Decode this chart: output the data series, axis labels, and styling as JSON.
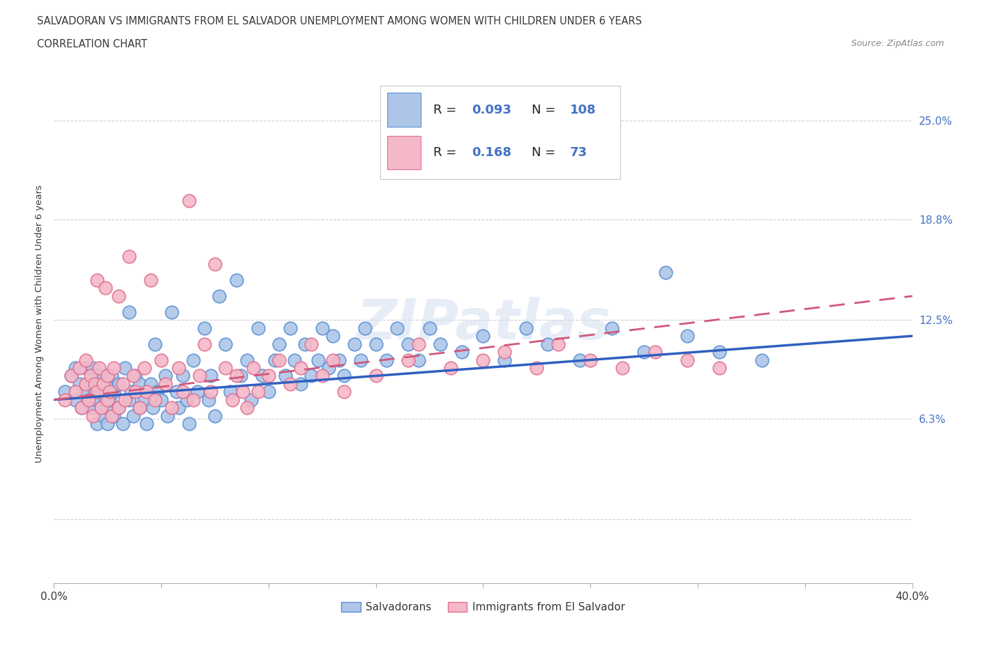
{
  "title_line1": "SALVADORAN VS IMMIGRANTS FROM EL SALVADOR UNEMPLOYMENT AMONG WOMEN WITH CHILDREN UNDER 6 YEARS",
  "title_line2": "CORRELATION CHART",
  "source_text": "Source: ZipAtlas.com",
  "ylabel": "Unemployment Among Women with Children Under 6 years",
  "xmin": 0.0,
  "xmax": 0.4,
  "ymin": -0.04,
  "ymax": 0.285,
  "ytick_vals": [
    0.0,
    0.063,
    0.125,
    0.188,
    0.25
  ],
  "ytick_labels": [
    "",
    "6.3%",
    "12.5%",
    "18.8%",
    "25.0%"
  ],
  "xtick_vals": [
    0.0,
    0.05,
    0.1,
    0.15,
    0.2,
    0.25,
    0.3,
    0.35,
    0.4
  ],
  "blue_color": "#adc6e8",
  "blue_edge_color": "#5b8fd4",
  "pink_color": "#f5b8c8",
  "pink_edge_color": "#e07090",
  "blue_line_color": "#3060c0",
  "pink_line_color": "#d05878",
  "label1": "Salvadorans",
  "label2": "Immigrants from El Salvador",
  "blue_R": "0.093",
  "blue_N": "108",
  "pink_R": "0.168",
  "pink_N": "73",
  "blue_trend": [
    0.075,
    0.115
  ],
  "pink_trend": [
    0.075,
    0.14
  ],
  "watermark": "ZIPatlas",
  "blue_x": [
    0.005,
    0.008,
    0.01,
    0.01,
    0.012,
    0.013,
    0.015,
    0.015,
    0.016,
    0.017,
    0.018,
    0.018,
    0.019,
    0.02,
    0.02,
    0.02,
    0.021,
    0.022,
    0.022,
    0.023,
    0.023,
    0.024,
    0.024,
    0.025,
    0.025,
    0.025,
    0.026,
    0.027,
    0.028,
    0.028,
    0.03,
    0.03,
    0.032,
    0.033,
    0.035,
    0.035,
    0.036,
    0.037,
    0.038,
    0.04,
    0.04,
    0.042,
    0.043,
    0.045,
    0.046,
    0.047,
    0.048,
    0.05,
    0.052,
    0.053,
    0.055,
    0.057,
    0.058,
    0.06,
    0.062,
    0.063,
    0.065,
    0.067,
    0.07,
    0.072,
    0.073,
    0.075,
    0.077,
    0.08,
    0.082,
    0.085,
    0.087,
    0.09,
    0.092,
    0.095,
    0.097,
    0.1,
    0.103,
    0.105,
    0.108,
    0.11,
    0.112,
    0.115,
    0.117,
    0.12,
    0.123,
    0.125,
    0.128,
    0.13,
    0.133,
    0.135,
    0.14,
    0.143,
    0.145,
    0.15,
    0.155,
    0.16,
    0.165,
    0.17,
    0.175,
    0.18,
    0.19,
    0.2,
    0.21,
    0.22,
    0.23,
    0.245,
    0.26,
    0.275,
    0.285,
    0.295,
    0.31,
    0.33
  ],
  "blue_y": [
    0.08,
    0.09,
    0.095,
    0.075,
    0.085,
    0.07,
    0.08,
    0.095,
    0.075,
    0.085,
    0.07,
    0.095,
    0.08,
    0.075,
    0.09,
    0.06,
    0.085,
    0.07,
    0.08,
    0.065,
    0.09,
    0.075,
    0.08,
    0.07,
    0.085,
    0.06,
    0.075,
    0.09,
    0.065,
    0.08,
    0.07,
    0.085,
    0.06,
    0.095,
    0.075,
    0.13,
    0.08,
    0.065,
    0.09,
    0.07,
    0.085,
    0.075,
    0.06,
    0.085,
    0.07,
    0.11,
    0.08,
    0.075,
    0.09,
    0.065,
    0.13,
    0.08,
    0.07,
    0.09,
    0.075,
    0.06,
    0.1,
    0.08,
    0.12,
    0.075,
    0.09,
    0.065,
    0.14,
    0.11,
    0.08,
    0.15,
    0.09,
    0.1,
    0.075,
    0.12,
    0.09,
    0.08,
    0.1,
    0.11,
    0.09,
    0.12,
    0.1,
    0.085,
    0.11,
    0.09,
    0.1,
    0.12,
    0.095,
    0.115,
    0.1,
    0.09,
    0.11,
    0.1,
    0.12,
    0.11,
    0.1,
    0.12,
    0.11,
    0.1,
    0.12,
    0.11,
    0.105,
    0.115,
    0.1,
    0.12,
    0.11,
    0.1,
    0.12,
    0.105,
    0.155,
    0.115,
    0.105,
    0.1
  ],
  "pink_x": [
    0.005,
    0.008,
    0.01,
    0.012,
    0.013,
    0.015,
    0.015,
    0.016,
    0.017,
    0.018,
    0.019,
    0.02,
    0.02,
    0.021,
    0.022,
    0.023,
    0.024,
    0.025,
    0.025,
    0.026,
    0.027,
    0.028,
    0.03,
    0.03,
    0.032,
    0.033,
    0.035,
    0.037,
    0.038,
    0.04,
    0.042,
    0.043,
    0.045,
    0.047,
    0.05,
    0.052,
    0.055,
    0.058,
    0.06,
    0.063,
    0.065,
    0.068,
    0.07,
    0.073,
    0.075,
    0.08,
    0.083,
    0.085,
    0.088,
    0.09,
    0.093,
    0.095,
    0.1,
    0.105,
    0.11,
    0.115,
    0.12,
    0.125,
    0.13,
    0.135,
    0.15,
    0.165,
    0.17,
    0.185,
    0.2,
    0.21,
    0.225,
    0.235,
    0.25,
    0.265,
    0.28,
    0.295,
    0.31
  ],
  "pink_y": [
    0.075,
    0.09,
    0.08,
    0.095,
    0.07,
    0.085,
    0.1,
    0.075,
    0.09,
    0.065,
    0.085,
    0.08,
    0.15,
    0.095,
    0.07,
    0.085,
    0.145,
    0.075,
    0.09,
    0.08,
    0.065,
    0.095,
    0.07,
    0.14,
    0.085,
    0.075,
    0.165,
    0.09,
    0.08,
    0.07,
    0.095,
    0.08,
    0.15,
    0.075,
    0.1,
    0.085,
    0.07,
    0.095,
    0.08,
    0.2,
    0.075,
    0.09,
    0.11,
    0.08,
    0.16,
    0.095,
    0.075,
    0.09,
    0.08,
    0.07,
    0.095,
    0.08,
    0.09,
    0.1,
    0.085,
    0.095,
    0.11,
    0.09,
    0.1,
    0.08,
    0.09,
    0.1,
    0.11,
    0.095,
    0.1,
    0.105,
    0.095,
    0.11,
    0.1,
    0.095,
    0.105,
    0.1,
    0.095
  ]
}
